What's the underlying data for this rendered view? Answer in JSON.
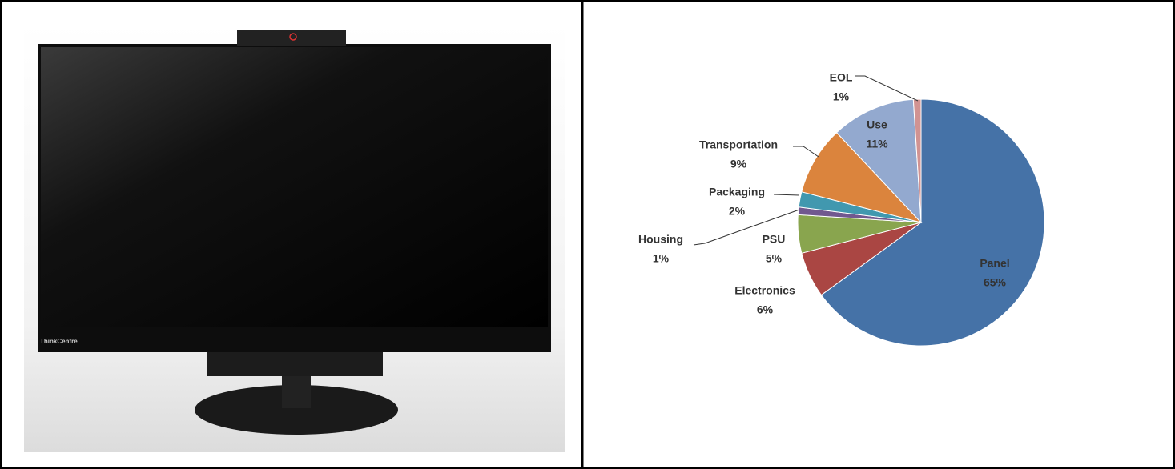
{
  "photo": {
    "brand_label": "ThinkCentre"
  },
  "chart_data": {
    "type": "pie",
    "categories": [
      "Panel",
      "Electronics",
      "PSU",
      "Housing",
      "Packaging",
      "Transportation",
      "Use",
      "EOL"
    ],
    "values": [
      65,
      6,
      5,
      1,
      2,
      9,
      11,
      1
    ],
    "value_labels": [
      "65%",
      "6%",
      "5%",
      "1%",
      "2%",
      "9%",
      "11%",
      "1%"
    ],
    "colors": [
      "#4572a7",
      "#aa4643",
      "#89a54e",
      "#71588f",
      "#4198af",
      "#db843d",
      "#93a9cf",
      "#d19392"
    ]
  }
}
